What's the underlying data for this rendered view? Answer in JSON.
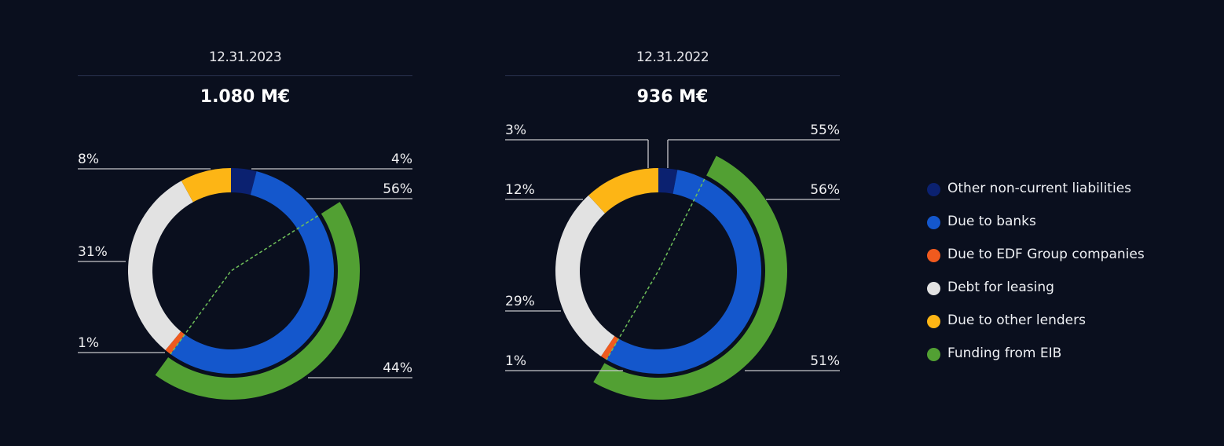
{
  "chart_data": [
    {
      "type": "pie",
      "title": "12.31.2023",
      "total": "1.080 M€",
      "segments": [
        {
          "name": "Other non-current liabilities",
          "value": 4,
          "label": "4%"
        },
        {
          "name": "Due to banks",
          "value": 56,
          "label": "56%"
        },
        {
          "name": "Due to EDF Group companies",
          "value": 1,
          "label": "1%"
        },
        {
          "name": "Debt for leasing",
          "value": 31,
          "label": "31%"
        },
        {
          "name": "Due to other lenders",
          "value": 8,
          "label": "8%"
        }
      ],
      "sub_segment": {
        "name": "Funding from EIB",
        "value": 44,
        "label": "44%",
        "part_of": "Due to banks"
      }
    },
    {
      "type": "pie",
      "title": "12.31.2022",
      "total": "936 M€",
      "segments": [
        {
          "name": "Other non-current liabilities",
          "value": 3,
          "label": "3%"
        },
        {
          "name": "Due to banks",
          "value": 56,
          "label": "56%"
        },
        {
          "name": "Due to EDF Group companies",
          "value": 1,
          "label": "1%"
        },
        {
          "name": "Debt for leasing",
          "value": 29,
          "label": "29%"
        },
        {
          "name": "Due to other lenders",
          "value": 12,
          "label": "12%"
        }
      ],
      "sub_segment": {
        "name": "Funding from EIB",
        "value": 51,
        "label": "51%",
        "part_of": "Due to banks"
      },
      "extra_label": "55%"
    }
  ],
  "legend": [
    {
      "label": "Other non-current liabilities",
      "color": "#0b2170"
    },
    {
      "label": "Due to banks",
      "color": "#1457cc"
    },
    {
      "label": "Due to EDF Group companies",
      "color": "#f05a1e"
    },
    {
      "label": "Debt for leasing",
      "color": "#e2e2e2"
    },
    {
      "label": "Due to other lenders",
      "color": "#fdb515"
    },
    {
      "label": "Funding from EIB",
      "color": "#52a033"
    }
  ]
}
